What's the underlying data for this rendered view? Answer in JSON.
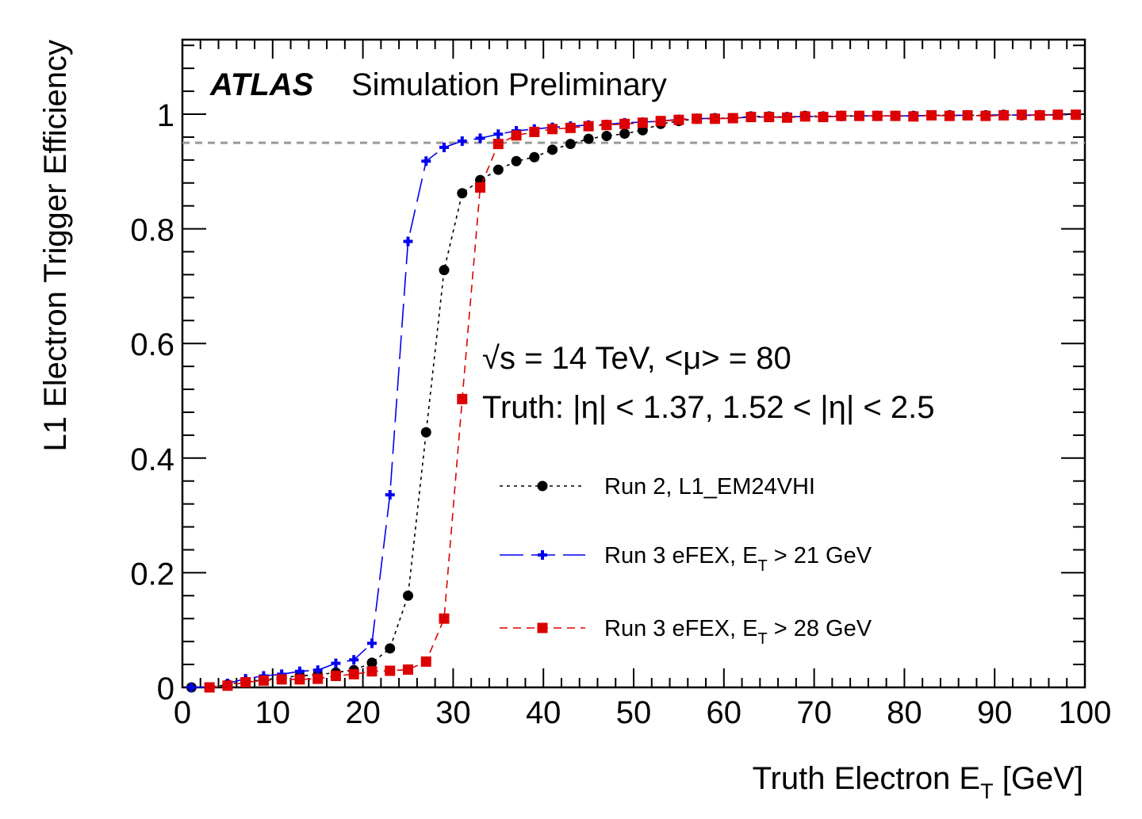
{
  "chart_data": {
    "type": "line",
    "title_bold": "ATLAS",
    "title_rest": "Simulation Preliminary",
    "ylabel": "L1 Electron Trigger Efficiency",
    "xlabel_main": "Truth Electron E",
    "xlabel_sub": "T",
    "xlabel_unit": "[GeV]",
    "xlim": [
      0,
      100
    ],
    "ylim": [
      0,
      1.13
    ],
    "x_ticks": [
      0,
      10,
      20,
      30,
      40,
      50,
      60,
      70,
      80,
      90,
      100
    ],
    "y_ticks": [
      {
        "value": 0,
        "label": "0"
      },
      {
        "value": 0.2,
        "label": "0.2"
      },
      {
        "value": 0.4,
        "label": "0.4"
      },
      {
        "value": 0.6,
        "label": "0.6"
      },
      {
        "value": 0.8,
        "label": "0.8"
      },
      {
        "value": 1,
        "label": "1"
      }
    ],
    "reference_line": {
      "y": 0.95,
      "color": "#999999"
    },
    "annotations": [
      "√s = 14 TeV, <μ> = 80",
      "Truth: |η| < 1.37, 1.52 < |η| < 2.5"
    ],
    "series": [
      {
        "name": "Run 2, L1_EM24VHI",
        "legend_main": "Run 2, L1_EM24VHI",
        "legend_sub": "",
        "legend_after": "",
        "color": "#000000",
        "marker": "circle",
        "line_style": "dotted",
        "x": [
          1,
          3,
          5,
          7,
          9,
          11,
          13,
          15,
          17,
          19,
          21,
          23,
          25,
          27,
          29,
          31,
          33,
          35,
          37,
          39,
          41,
          43,
          45,
          47,
          49,
          51,
          53,
          55,
          57,
          59,
          61,
          63,
          65,
          67,
          69,
          71,
          73,
          75,
          77,
          79,
          81,
          83,
          85,
          87,
          89,
          91,
          93,
          95,
          97,
          99
        ],
        "y": [
          0.0,
          0.0,
          0.005,
          0.01,
          0.013,
          0.017,
          0.02,
          0.022,
          0.026,
          0.03,
          0.043,
          0.068,
          0.16,
          0.445,
          0.728,
          0.862,
          0.885,
          0.903,
          0.918,
          0.925,
          0.938,
          0.948,
          0.957,
          0.962,
          0.966,
          0.972,
          0.983,
          0.988,
          0.992,
          0.993,
          0.993,
          0.996,
          0.996,
          0.995,
          0.997,
          0.996,
          0.997,
          0.997,
          0.997,
          0.997,
          0.997,
          0.998,
          0.998,
          0.998,
          0.998,
          0.999,
          0.998,
          0.998,
          0.999,
          0.999
        ]
      },
      {
        "name": "Run 3 eFEX, ET > 21 GeV",
        "legend_main": "Run 3 eFEX, E",
        "legend_sub": "T",
        "legend_after": " > 21 GeV",
        "color": "#0000ee",
        "marker": "cross",
        "line_style": "longdash",
        "x": [
          1,
          3,
          5,
          7,
          9,
          11,
          13,
          15,
          17,
          19,
          21,
          23,
          25,
          27,
          29,
          31,
          33,
          35,
          37,
          39,
          41,
          43,
          45,
          47,
          49,
          51,
          53,
          55,
          57,
          59,
          61,
          63,
          65,
          67,
          69,
          71,
          73,
          75,
          77,
          79,
          81,
          83,
          85,
          87,
          89,
          91,
          93,
          95,
          97,
          99
        ],
        "y": [
          0.0,
          0.0,
          0.007,
          0.015,
          0.02,
          0.023,
          0.028,
          0.03,
          0.042,
          0.048,
          0.077,
          0.336,
          0.778,
          0.918,
          0.942,
          0.953,
          0.958,
          0.965,
          0.971,
          0.974,
          0.977,
          0.979,
          0.981,
          0.982,
          0.985,
          0.986,
          0.988,
          0.991,
          0.992,
          0.993,
          0.993,
          0.995,
          0.995,
          0.995,
          0.996,
          0.996,
          0.996,
          0.997,
          0.997,
          0.997,
          0.997,
          0.998,
          0.998,
          0.998,
          0.998,
          0.999,
          0.998,
          0.999,
          0.999,
          0.999
        ]
      },
      {
        "name": "Run 3 eFEX, ET > 28 GeV",
        "legend_main": "Run 3 eFEX, E",
        "legend_sub": "T",
        "legend_after": " > 28 GeV",
        "color": "#dd0000",
        "marker": "square",
        "line_style": "dashed",
        "x": [
          3,
          5,
          7,
          9,
          11,
          13,
          15,
          17,
          19,
          21,
          23,
          25,
          27,
          29,
          31,
          33,
          35,
          37,
          39,
          41,
          43,
          45,
          47,
          49,
          51,
          53,
          55,
          57,
          59,
          61,
          63,
          65,
          67,
          69,
          71,
          73,
          75,
          77,
          79,
          81,
          83,
          85,
          87,
          89,
          91,
          93,
          95,
          97,
          99
        ],
        "y": [
          0.0,
          0.003,
          0.009,
          0.012,
          0.014,
          0.014,
          0.015,
          0.02,
          0.023,
          0.028,
          0.029,
          0.031,
          0.045,
          0.12,
          0.503,
          0.872,
          0.948,
          0.963,
          0.969,
          0.974,
          0.976,
          0.979,
          0.981,
          0.983,
          0.985,
          0.988,
          0.99,
          0.992,
          0.992,
          0.993,
          0.995,
          0.995,
          0.994,
          0.996,
          0.995,
          0.997,
          0.997,
          0.997,
          0.997,
          0.996,
          0.998,
          0.997,
          0.998,
          0.997,
          0.998,
          0.999,
          0.998,
          0.999,
          0.999
        ]
      }
    ]
  }
}
